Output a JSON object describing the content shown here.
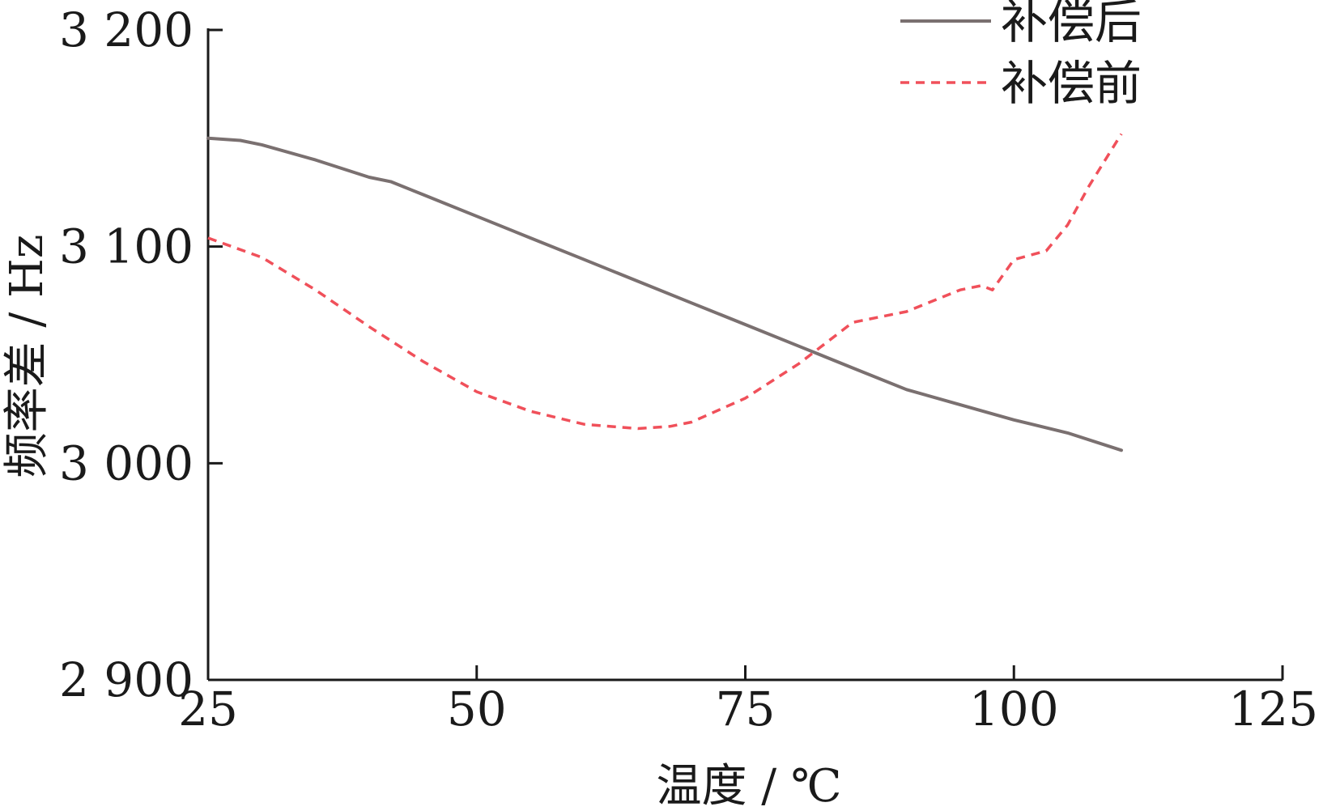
{
  "chart_data": {
    "type": "line",
    "title": "",
    "xlabel": "温度 / ℃",
    "ylabel": "频率差 / Hz",
    "xlim": [
      25,
      125
    ],
    "ylim": [
      2900,
      3200
    ],
    "xticks": [
      25,
      50,
      75,
      100,
      125
    ],
    "xtick_labels": [
      "25",
      "50",
      "75",
      "100",
      "125"
    ],
    "yticks": [
      2900,
      3000,
      3100,
      3200
    ],
    "ytick_labels": [
      "2 900",
      "3 000",
      "3 100",
      "3 200"
    ],
    "grid": false,
    "legend_position": "top-right",
    "series": [
      {
        "name": "补偿后",
        "style": "solid",
        "color": "#7a7070",
        "x": [
          25,
          28,
          30,
          35,
          40,
          42,
          45,
          50,
          55,
          60,
          65,
          70,
          75,
          80,
          85,
          90,
          95,
          100,
          105,
          110
        ],
        "y": [
          3150,
          3149,
          3147,
          3140,
          3132,
          3130,
          3124,
          3114,
          3104,
          3094,
          3084,
          3074,
          3064,
          3054,
          3044,
          3034,
          3027,
          3020,
          3014,
          3006
        ]
      },
      {
        "name": "补偿前",
        "style": "dashed",
        "color": "#f0505a",
        "x": [
          25,
          30,
          35,
          40,
          45,
          50,
          55,
          60,
          65,
          68,
          70,
          75,
          80,
          85,
          88,
          90,
          95,
          97,
          98,
          100,
          103,
          105,
          107,
          110
        ],
        "y": [
          3104,
          3095,
          3080,
          3063,
          3047,
          3033,
          3024,
          3018,
          3016,
          3017,
          3019,
          3030,
          3046,
          3065,
          3068,
          3070,
          3080,
          3082,
          3080,
          3094,
          3098,
          3110,
          3128,
          3152
        ]
      }
    ]
  }
}
